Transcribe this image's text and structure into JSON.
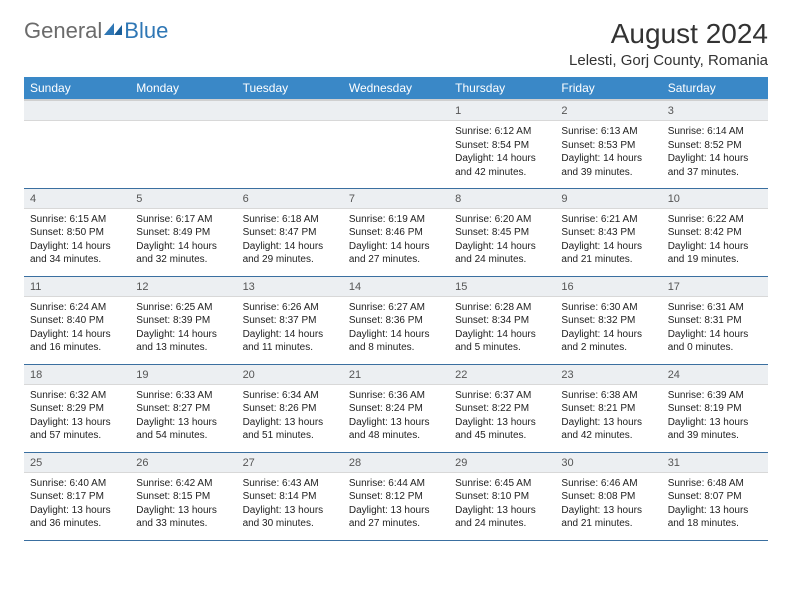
{
  "logo": {
    "word1": "General",
    "word2": "Blue"
  },
  "title": "August 2024",
  "location": "Lelesti, Gorj County, Romania",
  "styling": {
    "header_bg": "#3a88c7",
    "header_text": "#ffffff",
    "daynum_bg": "#eceff2",
    "daynum_text": "#555555",
    "body_text": "#222222",
    "row_border": "#3a6fa0",
    "logo_gray": "#6b6b6b",
    "logo_blue": "#2f77b5",
    "page_bg": "#ffffff",
    "title_fontsize": 28,
    "location_fontsize": 15,
    "header_fontsize": 12,
    "daynum_fontsize": 11,
    "body_fontsize": 10
  },
  "days_of_week": [
    "Sunday",
    "Monday",
    "Tuesday",
    "Wednesday",
    "Thursday",
    "Friday",
    "Saturday"
  ],
  "weeks": [
    [
      null,
      null,
      null,
      null,
      {
        "n": "1",
        "sr": "6:12 AM",
        "ss": "8:54 PM",
        "dl": "14 hours and 42 minutes."
      },
      {
        "n": "2",
        "sr": "6:13 AM",
        "ss": "8:53 PM",
        "dl": "14 hours and 39 minutes."
      },
      {
        "n": "3",
        "sr": "6:14 AM",
        "ss": "8:52 PM",
        "dl": "14 hours and 37 minutes."
      }
    ],
    [
      {
        "n": "4",
        "sr": "6:15 AM",
        "ss": "8:50 PM",
        "dl": "14 hours and 34 minutes."
      },
      {
        "n": "5",
        "sr": "6:17 AM",
        "ss": "8:49 PM",
        "dl": "14 hours and 32 minutes."
      },
      {
        "n": "6",
        "sr": "6:18 AM",
        "ss": "8:47 PM",
        "dl": "14 hours and 29 minutes."
      },
      {
        "n": "7",
        "sr": "6:19 AM",
        "ss": "8:46 PM",
        "dl": "14 hours and 27 minutes."
      },
      {
        "n": "8",
        "sr": "6:20 AM",
        "ss": "8:45 PM",
        "dl": "14 hours and 24 minutes."
      },
      {
        "n": "9",
        "sr": "6:21 AM",
        "ss": "8:43 PM",
        "dl": "14 hours and 21 minutes."
      },
      {
        "n": "10",
        "sr": "6:22 AM",
        "ss": "8:42 PM",
        "dl": "14 hours and 19 minutes."
      }
    ],
    [
      {
        "n": "11",
        "sr": "6:24 AM",
        "ss": "8:40 PM",
        "dl": "14 hours and 16 minutes."
      },
      {
        "n": "12",
        "sr": "6:25 AM",
        "ss": "8:39 PM",
        "dl": "14 hours and 13 minutes."
      },
      {
        "n": "13",
        "sr": "6:26 AM",
        "ss": "8:37 PM",
        "dl": "14 hours and 11 minutes."
      },
      {
        "n": "14",
        "sr": "6:27 AM",
        "ss": "8:36 PM",
        "dl": "14 hours and 8 minutes."
      },
      {
        "n": "15",
        "sr": "6:28 AM",
        "ss": "8:34 PM",
        "dl": "14 hours and 5 minutes."
      },
      {
        "n": "16",
        "sr": "6:30 AM",
        "ss": "8:32 PM",
        "dl": "14 hours and 2 minutes."
      },
      {
        "n": "17",
        "sr": "6:31 AM",
        "ss": "8:31 PM",
        "dl": "14 hours and 0 minutes."
      }
    ],
    [
      {
        "n": "18",
        "sr": "6:32 AM",
        "ss": "8:29 PM",
        "dl": "13 hours and 57 minutes."
      },
      {
        "n": "19",
        "sr": "6:33 AM",
        "ss": "8:27 PM",
        "dl": "13 hours and 54 minutes."
      },
      {
        "n": "20",
        "sr": "6:34 AM",
        "ss": "8:26 PM",
        "dl": "13 hours and 51 minutes."
      },
      {
        "n": "21",
        "sr": "6:36 AM",
        "ss": "8:24 PM",
        "dl": "13 hours and 48 minutes."
      },
      {
        "n": "22",
        "sr": "6:37 AM",
        "ss": "8:22 PM",
        "dl": "13 hours and 45 minutes."
      },
      {
        "n": "23",
        "sr": "6:38 AM",
        "ss": "8:21 PM",
        "dl": "13 hours and 42 minutes."
      },
      {
        "n": "24",
        "sr": "6:39 AM",
        "ss": "8:19 PM",
        "dl": "13 hours and 39 minutes."
      }
    ],
    [
      {
        "n": "25",
        "sr": "6:40 AM",
        "ss": "8:17 PM",
        "dl": "13 hours and 36 minutes."
      },
      {
        "n": "26",
        "sr": "6:42 AM",
        "ss": "8:15 PM",
        "dl": "13 hours and 33 minutes."
      },
      {
        "n": "27",
        "sr": "6:43 AM",
        "ss": "8:14 PM",
        "dl": "13 hours and 30 minutes."
      },
      {
        "n": "28",
        "sr": "6:44 AM",
        "ss": "8:12 PM",
        "dl": "13 hours and 27 minutes."
      },
      {
        "n": "29",
        "sr": "6:45 AM",
        "ss": "8:10 PM",
        "dl": "13 hours and 24 minutes."
      },
      {
        "n": "30",
        "sr": "6:46 AM",
        "ss": "8:08 PM",
        "dl": "13 hours and 21 minutes."
      },
      {
        "n": "31",
        "sr": "6:48 AM",
        "ss": "8:07 PM",
        "dl": "13 hours and 18 minutes."
      }
    ]
  ],
  "labels": {
    "sunrise": "Sunrise: ",
    "sunset": "Sunset: ",
    "daylight": "Daylight: "
  }
}
